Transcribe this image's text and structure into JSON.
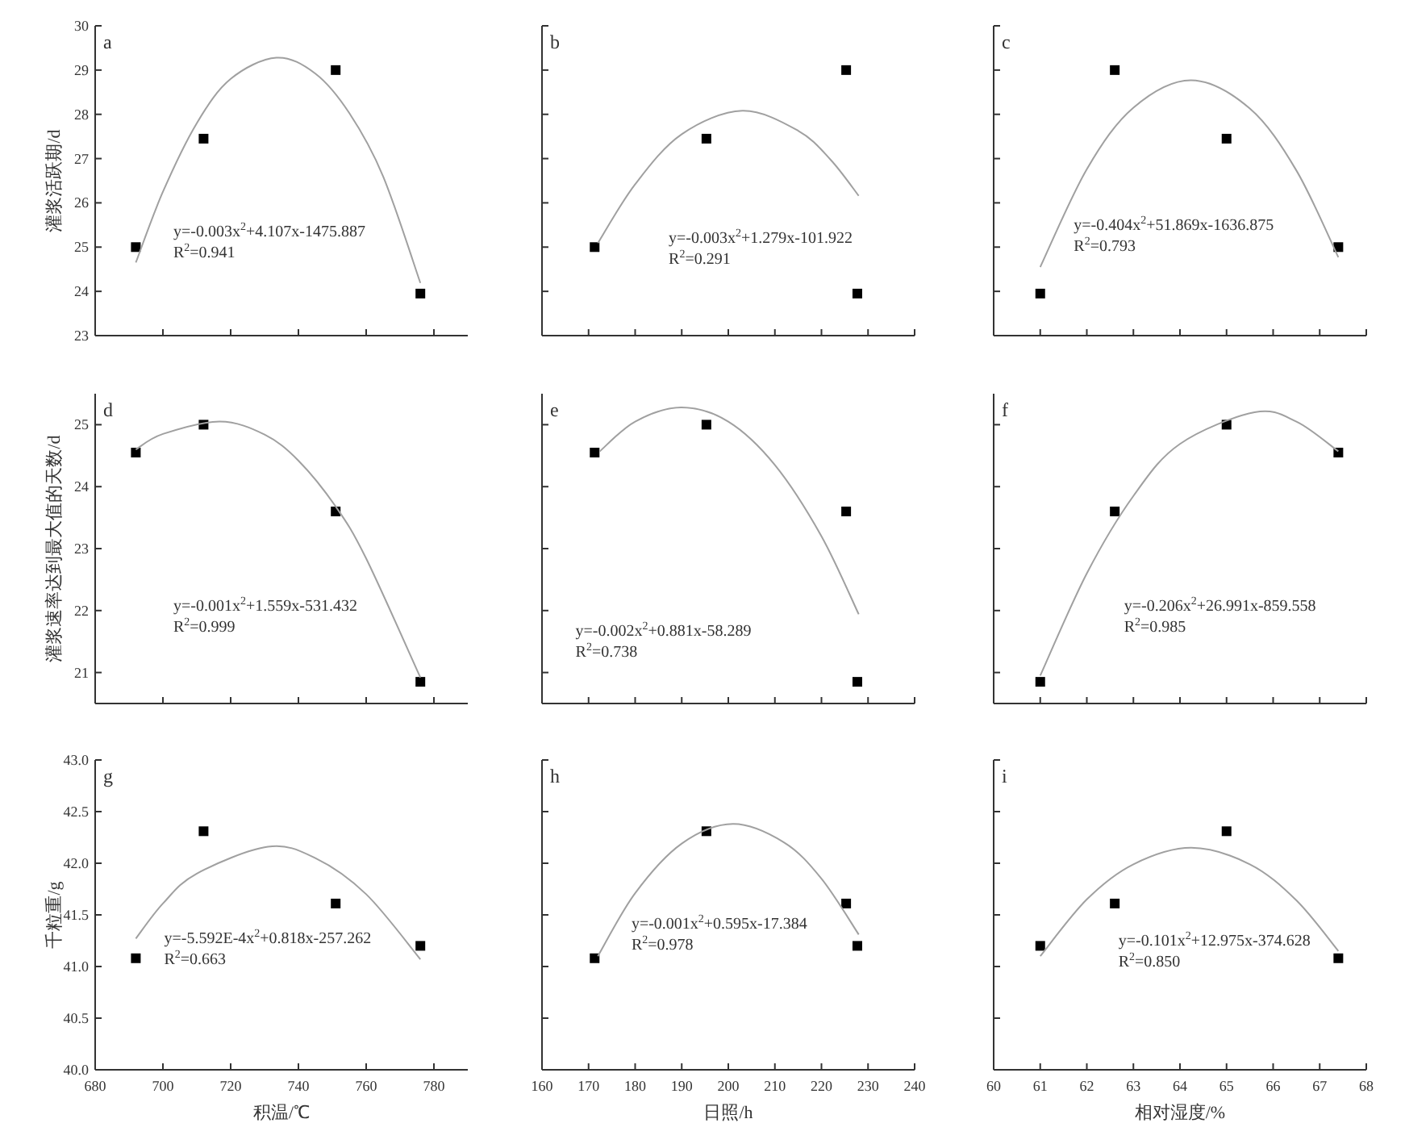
{
  "chart_data": [
    {
      "type": "scatter",
      "marker": "square",
      "tick_labels": "y",
      "ylabel": "灌浆活跃期/d",
      "annotations": [
        "a",
        "y=-0.003x$^{2}$+4.107x-1475.887",
        "R$^{2}$=0.941"
      ],
      "xlim": [
        680,
        790
      ],
      "xticks": [
        680,
        700,
        720,
        740,
        760,
        780
      ],
      "ylim": [
        23,
        30
      ],
      "yticks": [
        23,
        24,
        25,
        26,
        27,
        28,
        29,
        30
      ],
      "series": [
        {
          "color": "#000000",
          "x": [
            692,
            712,
            751,
            776
          ],
          "values": [
            25.0,
            27.45,
            29.0,
            23.95
          ]
        },
        {
          "type": "line",
          "marker": "none",
          "color": "#a0a0a0",
          "x": [
            692,
            700,
            710,
            720,
            733.5,
            745,
            755,
            765,
            776
          ],
          "values": [
            24.65,
            26.25,
            27.8,
            28.8,
            29.28,
            28.92,
            28.03,
            26.6,
            24.19
          ]
        }
      ]
    },
    {
      "type": "scatter",
      "marker": "square",
      "tick_labels": false,
      "annotations": [
        "b",
        "y=-0.003x$^{2}$+1.279x-101.922",
        "R$^{2}$=0.291"
      ],
      "xlim": [
        160,
        240
      ],
      "xticks": [
        160,
        170,
        180,
        190,
        200,
        210,
        220,
        230,
        240
      ],
      "ylim": [
        23,
        30
      ],
      "yticks": [
        23,
        24,
        25,
        26,
        27,
        28,
        29,
        30
      ],
      "series": [
        {
          "color": "#000000",
          "x": [
            171.3,
            195.3,
            225.3,
            227.7
          ],
          "values": [
            25.0,
            27.45,
            29.0,
            23.95
          ]
        },
        {
          "type": "line",
          "marker": "none",
          "color": "#a0a0a0",
          "x": [
            172,
            180,
            190,
            203,
            215,
            222,
            228
          ],
          "values": [
            25.09,
            26.42,
            27.55,
            28.08,
            27.63,
            26.97,
            26.16
          ]
        }
      ]
    },
    {
      "type": "scatter",
      "marker": "square",
      "tick_labels": false,
      "annotations": [
        "c",
        "y=-0.404x$^{2}$+51.869x-1636.875",
        "R$^{2}$=0.793"
      ],
      "xlim": [
        60,
        68
      ],
      "xticks": [
        60,
        61,
        62,
        63,
        64,
        65,
        66,
        67,
        68
      ],
      "ylim": [
        23,
        30
      ],
      "yticks": [
        23,
        24,
        25,
        26,
        27,
        28,
        29,
        30
      ],
      "series": [
        {
          "color": "#000000",
          "x": [
            61.0,
            62.6,
            65.0,
            67.4
          ],
          "values": [
            23.95,
            29.0,
            27.45,
            25.0
          ]
        },
        {
          "type": "line",
          "marker": "none",
          "color": "#a0a0a0",
          "x": [
            61,
            62,
            63,
            64.24,
            65.5,
            66.5,
            67.4
          ],
          "values": [
            24.55,
            26.76,
            28.15,
            28.77,
            28.13,
            26.73,
            24.77
          ]
        }
      ]
    },
    {
      "type": "scatter",
      "marker": "square",
      "tick_labels": "y",
      "ylabel": "灌浆速率达到最大值的天数/d",
      "annotations": [
        "d",
        "y=-0.001x$^{2}$+1.559x-531.432",
        "R$^{2}$=0.999"
      ],
      "xlim": [
        680,
        790
      ],
      "xticks": [
        680,
        700,
        720,
        740,
        760,
        780
      ],
      "ylim": [
        20.5,
        25.5
      ],
      "yticks": [
        21,
        22,
        23,
        24,
        25
      ],
      "series": [
        {
          "color": "#000000",
          "x": [
            692,
            712,
            751,
            776
          ],
          "values": [
            24.55,
            25.0,
            23.6,
            20.85
          ]
        },
        {
          "type": "line",
          "marker": "none",
          "color": "#a0a0a0",
          "x": [
            692,
            700,
            716.8,
            730,
            740,
            751,
            760,
            776
          ],
          "values": [
            24.6,
            24.85,
            25.05,
            24.84,
            24.42,
            23.68,
            22.84,
            20.92
          ]
        }
      ]
    },
    {
      "type": "scatter",
      "marker": "square",
      "tick_labels": false,
      "annotations": [
        "e",
        "y=-0.002x$^{2}$+0.881x-58.289",
        "R$^{2}$=0.738"
      ],
      "xlim": [
        160,
        240
      ],
      "xticks": [
        160,
        170,
        180,
        190,
        200,
        210,
        220,
        230,
        240
      ],
      "ylim": [
        20.5,
        25.5
      ],
      "yticks": [
        21,
        22,
        23,
        24,
        25
      ],
      "series": [
        {
          "color": "#000000",
          "x": [
            171.3,
            195.3,
            225.3,
            227.7
          ],
          "values": [
            24.55,
            25.0,
            23.6,
            20.85
          ]
        },
        {
          "type": "line",
          "marker": "none",
          "color": "#a0a0a0",
          "x": [
            172.4,
            180,
            189.9,
            200,
            210,
            220,
            228
          ],
          "values": [
            24.57,
            25.05,
            25.28,
            25.05,
            24.35,
            23.2,
            21.94
          ]
        }
      ]
    },
    {
      "type": "scatter",
      "marker": "square",
      "tick_labels": false,
      "annotations": [
        "f",
        "y=-0.206x$^{2}$+26.991x-859.558",
        "R$^{2}$=0.985"
      ],
      "xlim": [
        60,
        68
      ],
      "xticks": [
        60,
        61,
        62,
        63,
        64,
        65,
        66,
        67,
        68
      ],
      "ylim": [
        20.5,
        25.5
      ],
      "yticks": [
        21,
        22,
        23,
        24,
        25
      ],
      "series": [
        {
          "color": "#000000",
          "x": [
            61.0,
            62.6,
            65.0,
            67.4
          ],
          "values": [
            20.85,
            23.6,
            25.0,
            24.55
          ]
        },
        {
          "type": "line",
          "marker": "none",
          "color": "#a0a0a0",
          "x": [
            61,
            62,
            63,
            64,
            65.6,
            66.5,
            67.4
          ],
          "values": [
            20.95,
            22.6,
            23.85,
            24.69,
            25.2,
            25.05,
            24.57
          ]
        }
      ]
    },
    {
      "type": "scatter",
      "marker": "square",
      "ylabel": "千粒重/g",
      "xlabel": "积温/℃",
      "annotations": [
        "g",
        "y=-5.592E-4x$^{2}$+0.818x-257.262",
        "R$^{2}$=0.663"
      ],
      "xlim": [
        680,
        790
      ],
      "xticks": [
        680,
        700,
        720,
        740,
        760,
        780
      ],
      "ylim": [
        40,
        43
      ],
      "yticks": [
        {
          "value": 40,
          "label": "40.0"
        },
        40.5,
        {
          "value": 41,
          "label": "41.0"
        },
        41.5,
        {
          "value": 42,
          "label": "42.0"
        },
        42.5,
        {
          "value": 43,
          "label": "43.0"
        }
      ],
      "series": [
        {
          "color": "#000000",
          "x": [
            692,
            712,
            751,
            776
          ],
          "values": [
            41.08,
            42.31,
            41.61,
            41.2
          ]
        },
        {
          "type": "line",
          "marker": "none",
          "color": "#a0a0a0",
          "x": [
            692,
            700,
            710,
            731,
            745,
            760,
            776
          ],
          "values": [
            41.27,
            41.61,
            41.9,
            42.16,
            42.05,
            41.7,
            41.07
          ]
        }
      ]
    },
    {
      "type": "scatter",
      "marker": "square",
      "tick_labels": "x",
      "xlabel": "日照/h",
      "annotations": [
        "h",
        "y=-0.001x$^{2}$+0.595x-17.384",
        "R$^{2}$=0.978"
      ],
      "xlim": [
        160,
        240
      ],
      "xticks": [
        160,
        170,
        180,
        190,
        200,
        210,
        220,
        230,
        240
      ],
      "ylim": [
        40,
        43
      ],
      "yticks": [
        40,
        40.5,
        41,
        41.5,
        42,
        42.5,
        43
      ],
      "series": [
        {
          "color": "#000000",
          "x": [
            171.3,
            195.3,
            225.3,
            227.7
          ],
          "values": [
            41.08,
            42.31,
            41.61,
            41.2
          ]
        },
        {
          "type": "line",
          "marker": "none",
          "color": "#a0a0a0",
          "x": [
            172,
            180,
            190,
            201,
            212,
            220,
            228
          ],
          "values": [
            41.1,
            41.71,
            42.19,
            42.38,
            42.2,
            41.85,
            41.31
          ]
        }
      ]
    },
    {
      "type": "scatter",
      "marker": "square",
      "tick_labels": "x",
      "xlabel": "相对湿度/%",
      "annotations": [
        "i",
        "y=-0.101x$^{2}$+12.975x-374.628",
        "R$^{2}$=0.850"
      ],
      "xlim": [
        60,
        68
      ],
      "xticks": [
        60,
        61,
        62,
        63,
        64,
        65,
        66,
        67,
        68
      ],
      "ylim": [
        40,
        43
      ],
      "yticks": [
        40,
        40.5,
        41,
        41.5,
        42,
        42.5,
        43
      ],
      "series": [
        {
          "color": "#000000",
          "x": [
            61.0,
            62.6,
            65.0,
            67.4
          ],
          "values": [
            41.2,
            41.61,
            42.31,
            41.08
          ]
        },
        {
          "type": "line",
          "marker": "none",
          "color": "#a0a0a0",
          "x": [
            61,
            62,
            63,
            64.24,
            65.5,
            66.5,
            67.4
          ],
          "values": [
            41.1,
            41.65,
            41.99,
            42.15,
            41.99,
            41.64,
            41.15
          ]
        }
      ]
    }
  ]
}
